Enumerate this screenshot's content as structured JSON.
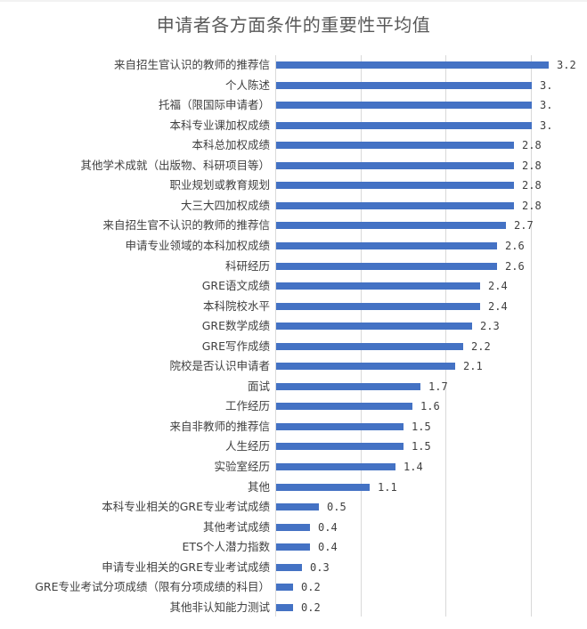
{
  "chart_data": {
    "type": "bar",
    "orientation": "horizontal",
    "title": "申请者各方面条件的重要性平均值",
    "xlabel": "",
    "ylabel": "",
    "xlim": [
      0,
      3.2
    ],
    "grid": true,
    "gridlines_at": [
      0,
      1,
      2,
      3
    ],
    "legend": "none",
    "bar_color": "#4472c4",
    "categories": [
      "来自招生官认识的教师的推荐信",
      "个人陈述",
      "托福（限国际申请者）",
      "本科专业课加权成绩",
      "本科总加权成绩",
      "其他学术成就（出版物、科研项目等）",
      "职业规划或教育规划",
      "大三大四加权成绩",
      "来自招生官不认识的教师的推荐信",
      "申请专业领域的本科加权成绩",
      "科研经历",
      "GRE语文成绩",
      "本科院校水平",
      "GRE数学成绩",
      "GRE写作成绩",
      "院校是否认识申请者",
      "面试",
      "工作经历",
      "来自非教师的推荐信",
      "人生经历",
      "实验室经历",
      "其他",
      "本科专业相关的GRE专业考试成绩",
      "其他考试成绩",
      "ETS个人潜力指数",
      "申请专业相关的GRE专业考试成绩",
      "GRE专业考试分项成绩（限有分项成绩的科目）",
      "其他非认知能力测试"
    ],
    "values": [
      3.2,
      3.0,
      3.0,
      3.0,
      2.8,
      2.8,
      2.8,
      2.8,
      2.7,
      2.6,
      2.6,
      2.4,
      2.4,
      2.3,
      2.2,
      2.1,
      1.7,
      1.6,
      1.5,
      1.5,
      1.4,
      1.1,
      0.5,
      0.4,
      0.4,
      0.3,
      0.2,
      0.2
    ],
    "data_labels": [
      "3.2",
      "3.",
      "3.",
      "3.",
      "2.8",
      "2.8",
      "2.8",
      "2.8",
      "2.7",
      "2.6",
      "2.6",
      "2.4",
      "2.4",
      "2.3",
      "2.2",
      "2.1",
      "1.7",
      "1.6",
      "1.5",
      "1.5",
      "1.4",
      "1.1",
      "0.5",
      "0.4",
      "0.4",
      "0.3",
      "0.2",
      "0.2"
    ]
  }
}
